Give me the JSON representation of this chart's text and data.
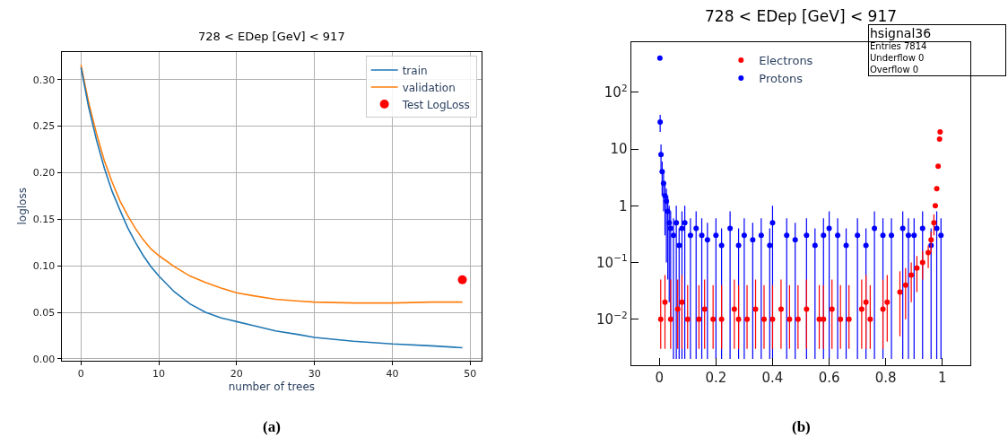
{
  "chart_data": [
    {
      "type": "line",
      "title": "728 < EDep [GeV] < 917",
      "xlabel": "number of trees",
      "ylabel": "logloss",
      "xlim": [
        -2.5,
        51.5
      ],
      "xticks": [
        0,
        10,
        20,
        30,
        40,
        50
      ],
      "ylim": [
        -0.002,
        0.33
      ],
      "yticks": [
        {
          "value": 0,
          "label": "0.00"
        },
        {
          "value": 0.05,
          "label": "0.05"
        },
        {
          "value": 0.1,
          "label": "0.10"
        },
        {
          "value": 0.15,
          "label": "0.15"
        },
        {
          "value": 0.2,
          "label": "0.20"
        },
        {
          "value": 0.25,
          "label": "0.25"
        },
        {
          "value": 0.3,
          "label": "0.30"
        }
      ],
      "grid": true,
      "legend": "top right",
      "annotations": [
        "(a)"
      ],
      "series": [
        {
          "name": "train",
          "color": "#1f77b4",
          "x": [
            0,
            1,
            2,
            3,
            4,
            5,
            6,
            7,
            8,
            9,
            10,
            12,
            14,
            16,
            18,
            20,
            22,
            25,
            28,
            30,
            35,
            40,
            45,
            49
          ],
          "values": [
            0.313,
            0.27,
            0.235,
            0.205,
            0.18,
            0.16,
            0.141,
            0.125,
            0.111,
            0.099,
            0.089,
            0.072,
            0.059,
            0.05,
            0.044,
            0.04,
            0.036,
            0.03,
            0.026,
            0.023,
            0.019,
            0.016,
            0.014,
            0.012
          ]
        },
        {
          "name": "validation",
          "color": "#ff7f0e",
          "x": [
            0,
            1,
            2,
            3,
            4,
            5,
            6,
            7,
            8,
            9,
            10,
            12,
            14,
            16,
            18,
            20,
            22,
            25,
            28,
            30,
            35,
            40,
            45,
            49
          ],
          "values": [
            0.316,
            0.275,
            0.242,
            0.213,
            0.19,
            0.17,
            0.154,
            0.14,
            0.128,
            0.118,
            0.111,
            0.099,
            0.089,
            0.082,
            0.076,
            0.071,
            0.068,
            0.064,
            0.062,
            0.061,
            0.06,
            0.06,
            0.061,
            0.061
          ]
        },
        {
          "name": "Test LogLoss",
          "type": "scatter",
          "marker": "circle",
          "color": "#ff0000",
          "x": [
            49
          ],
          "values": [
            0.085
          ]
        }
      ]
    },
    {
      "type": "scatter",
      "title": "728 < EDep [GeV] < 917",
      "log": "y",
      "grid": false,
      "legend": "top",
      "marker": "circle",
      "xlim": [
        -0.1,
        1.1
      ],
      "xticks": [
        0,
        0.2,
        0.4,
        0.6,
        0.8,
        1
      ],
      "ylim": [
        0.00155,
        760
      ],
      "yticks": [
        {
          "value": 0.01,
          "label": "10$^{−2}$"
        },
        {
          "value": 0.1,
          "label": "10$^{−1}$"
        },
        1,
        10,
        {
          "value": 100,
          "label": "10$^{2}$"
        }
      ],
      "annotations": [
        "(b)",
        "hsignal36",
        "Entries 7814",
        "Underflow 0",
        "Overflow 0"
      ],
      "series": [
        {
          "name": "Electrons",
          "color": "#ff0000",
          "x": [
            0.005,
            0.02,
            0.04,
            0.065,
            0.08,
            0.1,
            0.14,
            0.16,
            0.19,
            0.22,
            0.265,
            0.28,
            0.31,
            0.34,
            0.37,
            0.4,
            0.43,
            0.46,
            0.49,
            0.52,
            0.565,
            0.58,
            0.61,
            0.64,
            0.67,
            0.715,
            0.73,
            0.745,
            0.79,
            0.805,
            0.85,
            0.87,
            0.89,
            0.91,
            0.93,
            0.95,
            0.96,
            0.97,
            0.975,
            0.98,
            0.985,
            0.99,
            0.992
          ],
          "values": [
            0.01,
            0.02,
            0.01,
            0.015,
            0.02,
            0.01,
            0.01,
            0.015,
            0.01,
            0.01,
            0.015,
            0.01,
            0.01,
            0.015,
            0.01,
            0.01,
            0.015,
            0.01,
            0.01,
            0.015,
            0.01,
            0.01,
            0.015,
            0.01,
            0.01,
            0.015,
            0.02,
            0.01,
            0.015,
            0.02,
            0.03,
            0.04,
            0.06,
            0.08,
            0.1,
            0.15,
            0.25,
            0.5,
            1,
            2,
            5,
            15,
            20
          ],
          "errors": [
            [
              0.003,
              0.05
            ],
            [
              0.003,
              0.06
            ],
            [
              0.003,
              0.05
            ],
            [
              0.003,
              0.05
            ],
            [
              0.003,
              0.06
            ],
            [
              0.003,
              0.04
            ],
            [
              0.003,
              0.04
            ],
            [
              0.003,
              0.05
            ],
            [
              0.003,
              0.04
            ],
            [
              0.003,
              0.04
            ],
            [
              0.003,
              0.05
            ],
            [
              0.003,
              0.04
            ],
            [
              0.003,
              0.04
            ],
            [
              0.003,
              0.05
            ],
            [
              0.003,
              0.04
            ],
            [
              0.003,
              0.04
            ],
            [
              0.003,
              0.05
            ],
            [
              0.003,
              0.04
            ],
            [
              0.003,
              0.04
            ],
            [
              0.003,
              0.05
            ],
            [
              0.003,
              0.04
            ],
            [
              0.003,
              0.04
            ],
            [
              0.003,
              0.05
            ],
            [
              0.003,
              0.04
            ],
            [
              0.003,
              0.04
            ],
            [
              0.003,
              0.05
            ],
            [
              0.003,
              0.06
            ],
            [
              0.003,
              0.04
            ],
            [
              0.003,
              0.05
            ],
            [
              0.004,
              0.06
            ],
            [
              0.005,
              0.07
            ],
            [
              0.01,
              0.08
            ],
            [
              0.02,
              0.1
            ],
            [
              0.03,
              0.13
            ],
            [
              0.05,
              0.16
            ],
            [
              0.08,
              0.2
            ],
            [
              0.15,
              0.35
            ],
            [
              0.3,
              0.7
            ],
            null,
            null,
            null,
            null,
            null
          ]
        },
        {
          "name": "Protons",
          "color": "#0000ff",
          "x": [
            0.002,
            0.003,
            0.006,
            0.01,
            0.015,
            0.02,
            0.025,
            0.03,
            0.035,
            0.04,
            0.05,
            0.06,
            0.07,
            0.08,
            0.09,
            0.11,
            0.13,
            0.15,
            0.17,
            0.2,
            0.22,
            0.25,
            0.28,
            0.3,
            0.33,
            0.36,
            0.39,
            0.4,
            0.45,
            0.48,
            0.52,
            0.55,
            0.58,
            0.6,
            0.63,
            0.66,
            0.7,
            0.73,
            0.76,
            0.79,
            0.82,
            0.86,
            0.88,
            0.9,
            0.93,
            0.96,
            0.98,
            0.995
          ],
          "values": [
            400,
            30,
            8,
            4,
            2.5,
            1.5,
            1.2,
            0.8,
            0.5,
            0.4,
            0.3,
            0.5,
            0.2,
            0.4,
            0.5,
            0.3,
            0.4,
            0.3,
            0.25,
            0.3,
            0.2,
            0.4,
            0.2,
            0.3,
            0.25,
            0.3,
            0.2,
            0.5,
            0.3,
            0.25,
            0.3,
            0.2,
            0.3,
            0.4,
            0.3,
            0.2,
            0.3,
            0.2,
            0.4,
            0.3,
            0.3,
            0.4,
            0.3,
            0.3,
            0.4,
            0.2,
            0.4,
            0.3
          ],
          "errors": [
            null,
            [
              20,
              40
            ],
            [
              4,
              12
            ],
            [
              1.5,
              6
            ],
            [
              0.8,
              4
            ],
            [
              0.3,
              2.5
            ],
            [
              0.1,
              2
            ],
            [
              0.05,
              1.5
            ],
            [
              0.02,
              1
            ],
            [
              0.01,
              0.8
            ],
            [
              0.002,
              0.6
            ],
            [
              0.002,
              1
            ],
            [
              0.002,
              0.4
            ],
            [
              0.002,
              0.8
            ],
            [
              0.002,
              1
            ],
            [
              0.002,
              0.6
            ],
            [
              0.002,
              0.8
            ],
            [
              0.002,
              0.6
            ],
            [
              0.002,
              0.5
            ],
            [
              0.002,
              0.6
            ],
            [
              0.002,
              0.4
            ],
            [
              0.002,
              0.8
            ],
            [
              0.002,
              0.4
            ],
            [
              0.002,
              0.6
            ],
            [
              0.002,
              0.5
            ],
            [
              0.002,
              0.6
            ],
            [
              0.002,
              0.4
            ],
            [
              0.002,
              1
            ],
            [
              0.002,
              0.6
            ],
            [
              0.002,
              0.5
            ],
            [
              0.002,
              0.6
            ],
            [
              0.002,
              0.4
            ],
            [
              0.002,
              0.6
            ],
            [
              0.002,
              0.8
            ],
            [
              0.002,
              0.6
            ],
            [
              0.002,
              0.4
            ],
            [
              0.002,
              0.6
            ],
            [
              0.002,
              0.4
            ],
            [
              0.002,
              0.8
            ],
            [
              0.002,
              0.6
            ],
            [
              0.002,
              0.6
            ],
            [
              0.002,
              0.8
            ],
            [
              0.002,
              0.6
            ],
            [
              0.002,
              0.6
            ],
            [
              0.002,
              0.8
            ],
            [
              0.002,
              0.4
            ],
            [
              0.002,
              0.8
            ],
            [
              0.002,
              0.6
            ]
          ]
        }
      ]
    }
  ]
}
